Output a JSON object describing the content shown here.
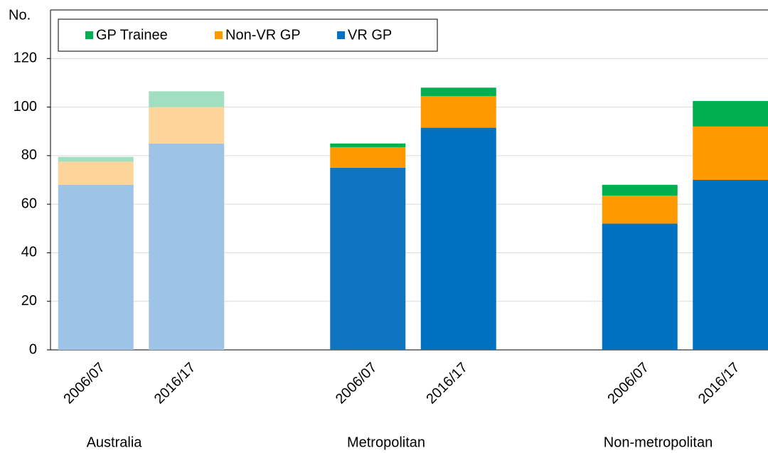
{
  "chart_data": {
    "type": "stacked-bar",
    "y_label": "No.",
    "categories": [
      "2006/07",
      "2016/17",
      "2006/07",
      "2016/17",
      "2006/07",
      "2016/17"
    ],
    "groups": [
      "Australia",
      "Metropolitan",
      "Non-metropolitan"
    ],
    "series": [
      {
        "name": "VR GP",
        "colors": [
          "#9dc3e6",
          "#9dc3e6",
          "#0f75c0",
          "#0070c0",
          "#0070c0",
          "#0070c0"
        ],
        "values": [
          68,
          85,
          75,
          91.5,
          52,
          70
        ]
      },
      {
        "name": "Non-VR GP",
        "colors": [
          "#fdd59b",
          "#fdd59b",
          "#ff9900",
          "#ff9900",
          "#ff9900",
          "#ff9900"
        ],
        "values": [
          9.5,
          15,
          8.5,
          13,
          11.5,
          22
        ]
      },
      {
        "name": "GP Trainee",
        "colors": [
          "#a1dfc0",
          "#a1dfc0",
          "#00b050",
          "#00b050",
          "#00b050",
          "#00b050"
        ],
        "values": [
          2,
          6.5,
          1.5,
          3.5,
          4.5,
          10.5
        ]
      }
    ],
    "legend_order": [
      2,
      1,
      0
    ],
    "ylim": [
      0,
      140
    ],
    "yticks": [
      0,
      20,
      40,
      60,
      80,
      100,
      120
    ],
    "grid": true
  }
}
